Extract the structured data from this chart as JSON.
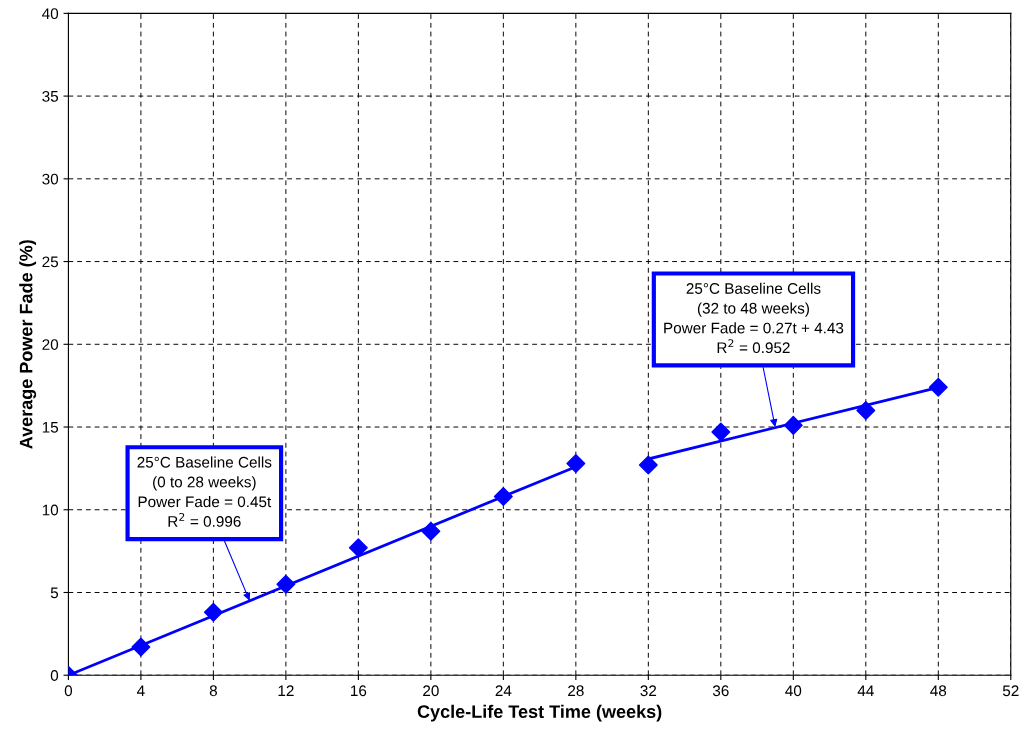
{
  "chart_data": {
    "type": "scatter",
    "xlabel": "Cycle-Life Test Time (weeks)",
    "ylabel": "Average Power Fade (%)",
    "x": [
      0,
      4,
      8,
      12,
      16,
      20,
      24,
      28,
      32,
      36,
      40,
      44,
      48
    ],
    "series": [
      {
        "color": "#0000ff",
        "marker": "diamond",
        "values": [
          0,
          1.7,
          3.8,
          5.5,
          7.7,
          8.7,
          10.8,
          12.8,
          12.7,
          14.7,
          15.1,
          16.0,
          17.4
        ]
      },
      {
        "type": "line",
        "color": "#0000ff",
        "marker": "none",
        "x": [
          0,
          28
        ],
        "values": [
          0,
          12.6
        ]
      },
      {
        "type": "line",
        "color": "#0000ff",
        "marker": "none",
        "x": [
          32,
          48
        ],
        "values": [
          13.07,
          17.39
        ]
      }
    ],
    "annotations": [
      {
        "text": "25°C Baseline Cells\n(0 to 28 weeks)\nPower Fade = 0.45t\nR$^{2}$ = 0.996",
        "x": 10,
        "y": 4.5
      },
      {
        "text": "25°C Baseline Cells\n(32 to 48 weeks)\nPower Fade = 0.27t + 4.43\nR$^{2}$ = 0.952",
        "x": 39,
        "y": 15.0
      }
    ],
    "xlim": [
      0,
      52
    ],
    "xticks": [
      0,
      4,
      8,
      12,
      16,
      20,
      24,
      28,
      32,
      36,
      40,
      44,
      48,
      52
    ],
    "ylim": [
      0,
      40
    ],
    "yticks": [
      0,
      5,
      10,
      15,
      20,
      25,
      30,
      35,
      40
    ],
    "grid": true,
    "legend": false
  }
}
